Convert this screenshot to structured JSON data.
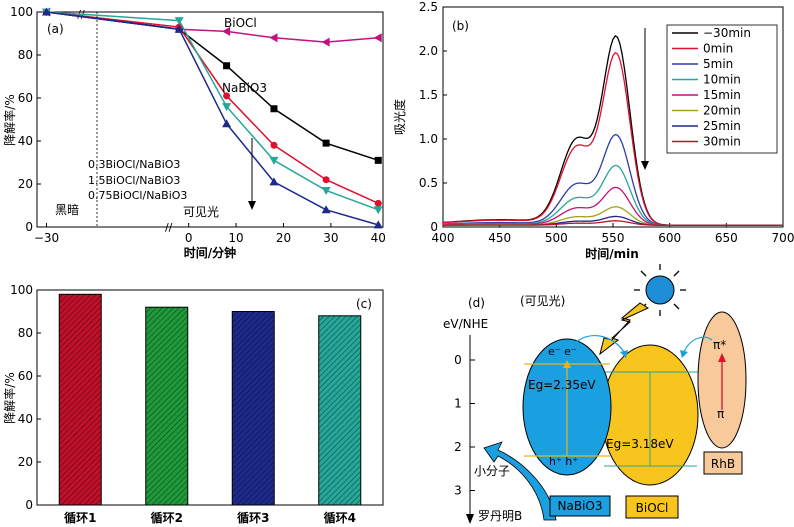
{
  "chart_data": [
    {
      "type": "line",
      "panel": "(a)",
      "xlabel": "时间/分钟",
      "ylabel": "降解率/%",
      "xlim": [
        -32,
        41
      ],
      "ylim": [
        0,
        100
      ],
      "x_ticks": [
        "-30",
        "0",
        "10",
        "20",
        "30",
        "40"
      ],
      "y_ticks": [
        "0",
        "20",
        "40",
        "60",
        "80",
        "100"
      ],
      "x": [
        -30,
        -2,
        8,
        18,
        29,
        40
      ],
      "series": [
        {
          "name": "BiOCl",
          "color": "#c0127f",
          "marker": "triangle-left",
          "values": [
            100,
            92,
            91,
            88,
            86,
            88
          ]
        },
        {
          "name": "NaBiO3",
          "color": "#000000",
          "marker": "square",
          "values": [
            100,
            92,
            75,
            55,
            39,
            31
          ]
        },
        {
          "name": "0.3BiOCl/NaBiO3",
          "color": "#e0102e",
          "marker": "circle",
          "values": [
            100,
            93,
            61,
            38,
            22,
            11
          ]
        },
        {
          "name": "1.5BiOCl/NaBiO3",
          "color": "#25a898",
          "marker": "triangle-down",
          "values": [
            100,
            96,
            56,
            31,
            17,
            8
          ]
        },
        {
          "name": "0.75BiOCl/NaBiO3",
          "color": "#1c2a8c",
          "marker": "triangle-up",
          "values": [
            100,
            92,
            48,
            21,
            8,
            1
          ]
        }
      ],
      "annotations": {
        "dark": "黑暗",
        "light": "可见光",
        "bioci": "BiOCl",
        "nabio3": "NaBiO3",
        "s1": "0.3BiOCl/NaBiO3",
        "s2": "1.5BiOCl/NaBiO3",
        "s3": "0.75BiOCl/NaBiO3"
      }
    },
    {
      "type": "line",
      "panel": "(b)",
      "xlabel": "时间/min",
      "ylabel": "吸光度",
      "xlim": [
        400,
        700
      ],
      "ylim": [
        0,
        2.5
      ],
      "x_ticks": [
        "400",
        "450",
        "500",
        "550",
        "600",
        "650",
        "700"
      ],
      "y_ticks": [
        "0",
        "0.5",
        "1.0",
        "1.5",
        "2.0",
        "2.5"
      ],
      "peak_x": 553,
      "series": [
        {
          "name": "−30min",
          "color": "#000000",
          "peak": 2.15
        },
        {
          "name": "0min",
          "color": "#e0102e",
          "peak": 1.96
        },
        {
          "name": "5min",
          "color": "#2f3aa8",
          "peak": 1.03
        },
        {
          "name": "10min",
          "color": "#25a898",
          "peak": 0.68
        },
        {
          "name": "15min",
          "color": "#c0127f",
          "peak": 0.43
        },
        {
          "name": "20min",
          "color": "#a6a01a",
          "peak": 0.21
        },
        {
          "name": "25min",
          "color": "#1c2a8c",
          "peak": 0.1
        },
        {
          "name": "30min",
          "color": "#c0102a",
          "peak": 0.05
        }
      ]
    },
    {
      "type": "bar",
      "panel": "(c)",
      "ylabel": "降解率/%",
      "ylim": [
        0,
        100
      ],
      "y_ticks": [
        "0",
        "20",
        "40",
        "60",
        "80",
        "100"
      ],
      "categories": [
        "循环1",
        "循环2",
        "循环3",
        "循环4"
      ],
      "values": [
        98,
        92,
        90,
        88
      ],
      "colors": [
        "#c0102a",
        "#1f9a3a",
        "#1c2a8c",
        "#25a898"
      ]
    }
  ],
  "diagram": {
    "panel": "(d)",
    "title": "(可见光)",
    "axis_label": "eV/NHE",
    "scale": [
      "0",
      "1",
      "2",
      "3"
    ],
    "nabio3_box": "NaBiO3",
    "nabio3_eg": "Eg=2.35eV",
    "electrons": "e⁻ e⁻",
    "holes": "h⁺ h⁺",
    "bioci_box": "BiOCl",
    "bioci_eg": "Eg=3.18eV",
    "rhb_box": "RhB",
    "pi_star": "π*",
    "pi": "π",
    "small_molecule": "小分子",
    "rhodamine": "罗丹明B",
    "colors": {
      "nabio3": "#1aa0e0",
      "bioci": "#f7c51e",
      "rhb": "#f8c99a",
      "sun": "#1e8ed6"
    }
  }
}
